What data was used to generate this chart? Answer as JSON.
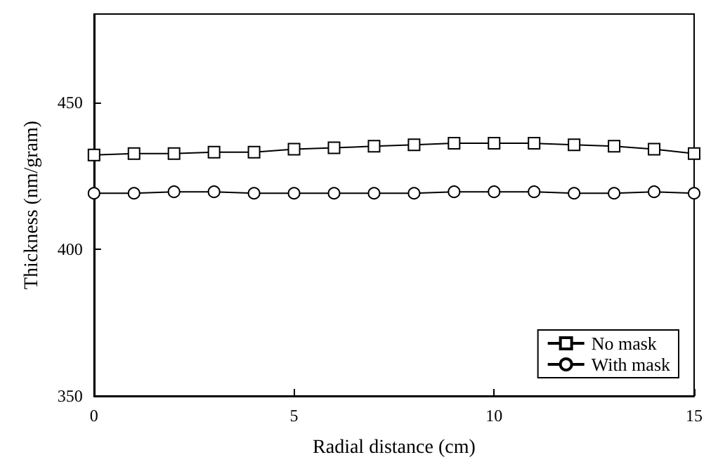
{
  "chart_data": {
    "type": "line",
    "xlabel": "Radial distance (cm)",
    "ylabel": "Thickness (nm/gram)",
    "x": [
      0,
      1,
      2,
      3,
      4,
      5,
      6,
      7,
      8,
      9,
      10,
      11,
      12,
      13,
      14,
      15
    ],
    "series": [
      {
        "name": "No mask",
        "color": "#000000",
        "marker": "square",
        "values": [
          432,
          432.5,
          432.5,
          433,
          433,
          434,
          434.5,
          435,
          435.5,
          436,
          436,
          436,
          435.5,
          435,
          434,
          432.5
        ]
      },
      {
        "name": "With mask",
        "color": "#000000",
        "marker": "circle",
        "values": [
          419,
          419,
          419.5,
          419.5,
          419,
          419,
          419,
          419,
          419,
          419.5,
          419.5,
          419.5,
          419,
          419,
          419.5,
          419
        ]
      }
    ],
    "xlim": [
      0,
      15
    ],
    "xticks": [
      0,
      5,
      10,
      15
    ],
    "ylim": [
      350,
      480
    ],
    "yticks": [
      350,
      400,
      450
    ],
    "grid": false,
    "legend": "bottom right",
    "line_style": "solid"
  }
}
